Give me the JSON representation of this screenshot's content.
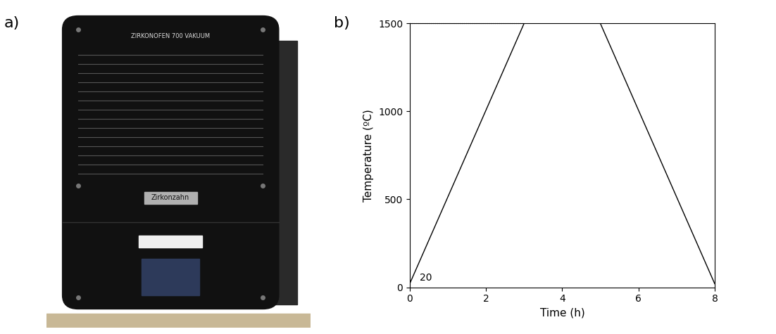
{
  "panel_labels": [
    "a)",
    "b)"
  ],
  "photo": {
    "model_text": "ZIRKONOFEN 700 VAKUUM",
    "brand_text": "Zirkonzahn"
  },
  "chart_data": {
    "type": "line",
    "x": [
      0,
      3,
      5,
      8
    ],
    "values": [
      20,
      1500,
      1500,
      20
    ],
    "color": "#000000",
    "line_style": "solid",
    "xlabel": "Time (h)",
    "ylabel": "Temperature (ºC)",
    "xlim": [
      0,
      8
    ],
    "ylim": [
      0,
      1500
    ],
    "xticks": [
      0,
      2,
      4,
      6,
      8
    ],
    "yticks": [
      0,
      500,
      1000,
      1500
    ],
    "reference_line": {
      "y": 1500,
      "x": [
        0,
        3
      ],
      "line_style": "dotted"
    },
    "annotations": [
      {
        "text": "20"
      }
    ],
    "grid": false
  }
}
